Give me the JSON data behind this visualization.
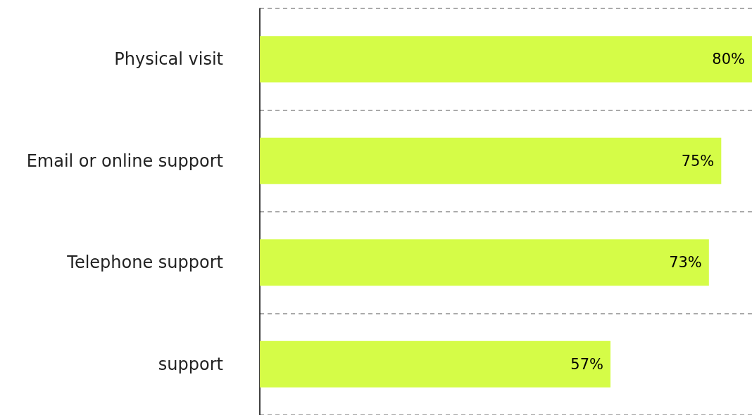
{
  "chart_data": {
    "type": "bar",
    "orientation": "horizontal",
    "categories": [
      "Physical visit",
      "Email or online support",
      "Telephone support",
      "support"
    ],
    "values": [
      80,
      75,
      73,
      57
    ],
    "color": "#d5fc47",
    "value_labels": [
      "80%",
      "75%",
      "73%",
      "57%"
    ],
    "grid": "y"
  }
}
